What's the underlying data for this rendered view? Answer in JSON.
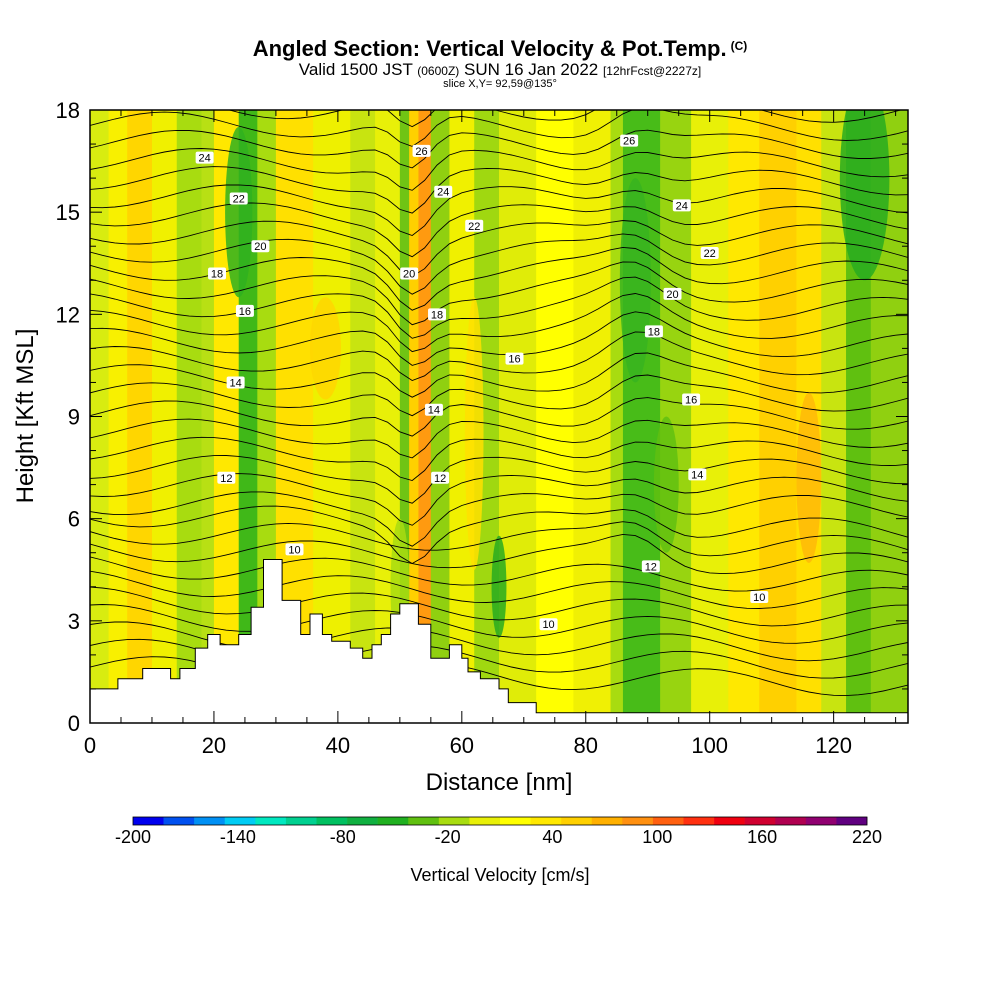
{
  "title": {
    "main": "Angled Section: Vertical Velocity & Pot.Temp.",
    "units_tag": "(C)"
  },
  "subtitle": {
    "valid": "Valid 1500 JST",
    "utc": "(0600Z)",
    "date": "SUN 16 Jan 2022",
    "forecast": "[12hrFcst@2227z]"
  },
  "slice_info": "slice X,Y= 92,59@135°",
  "chart_data": {
    "type": "heatmap",
    "xlabel": "Distance [nm]",
    "ylabel": "Height [Kft MSL]",
    "xlim": [
      0,
      132
    ],
    "ylim": [
      0,
      18
    ],
    "x_ticks": [
      0,
      20,
      40,
      60,
      80,
      100,
      120
    ],
    "y_ticks": [
      0,
      3,
      6,
      9,
      12,
      15,
      18
    ],
    "colorbar": {
      "label": "Vertical Velocity [cm/s]",
      "tick_labels": [
        "-200",
        "-140",
        "-80",
        "-20",
        "40",
        "100",
        "160",
        "220"
      ],
      "colors": [
        "#0000ee",
        "#0050f0",
        "#0090f4",
        "#00ccf4",
        "#00e8c0",
        "#00d090",
        "#00c060",
        "#10b040",
        "#20b020",
        "#60c010",
        "#a8dc10",
        "#e8f008",
        "#ffff00",
        "#ffe800",
        "#ffd000",
        "#ffb000",
        "#ff9010",
        "#ff6010",
        "#ff3010",
        "#f00010",
        "#d00030",
        "#b00050",
        "#900070",
        "#600080"
      ]
    },
    "isotherm_labels": [
      {
        "x": 18.5,
        "y": 16.6,
        "label": "24"
      },
      {
        "x": 24,
        "y": 15.4,
        "label": "22"
      },
      {
        "x": 27.5,
        "y": 14.0,
        "label": "20"
      },
      {
        "x": 20.5,
        "y": 13.2,
        "label": "18"
      },
      {
        "x": 25,
        "y": 12.1,
        "label": "16"
      },
      {
        "x": 23.5,
        "y": 10.0,
        "label": "14"
      },
      {
        "x": 22,
        "y": 7.2,
        "label": "12"
      },
      {
        "x": 33,
        "y": 5.1,
        "label": "10"
      },
      {
        "x": 53.5,
        "y": 16.8,
        "label": "26"
      },
      {
        "x": 57,
        "y": 15.6,
        "label": "24"
      },
      {
        "x": 62,
        "y": 14.6,
        "label": "22"
      },
      {
        "x": 51.5,
        "y": 13.2,
        "label": "20"
      },
      {
        "x": 56,
        "y": 12.0,
        "label": "18"
      },
      {
        "x": 68.5,
        "y": 10.7,
        "label": "16"
      },
      {
        "x": 55.5,
        "y": 9.2,
        "label": "14"
      },
      {
        "x": 56.5,
        "y": 7.2,
        "label": "12"
      },
      {
        "x": 74,
        "y": 2.9,
        "label": "10"
      },
      {
        "x": 87,
        "y": 17.1,
        "label": "26"
      },
      {
        "x": 95.5,
        "y": 15.2,
        "label": "24"
      },
      {
        "x": 100,
        "y": 13.8,
        "label": "22"
      },
      {
        "x": 94,
        "y": 12.6,
        "label": "20"
      },
      {
        "x": 91,
        "y": 11.5,
        "label": "18"
      },
      {
        "x": 97,
        "y": 9.5,
        "label": "16"
      },
      {
        "x": 98,
        "y": 7.3,
        "label": "14"
      },
      {
        "x": 90.5,
        "y": 4.6,
        "label": "12"
      },
      {
        "x": 108,
        "y": 3.7,
        "label": "10"
      }
    ]
  },
  "colors": {
    "background": "#ffffff",
    "contour": "#000000",
    "terrain": "#ffffff"
  }
}
